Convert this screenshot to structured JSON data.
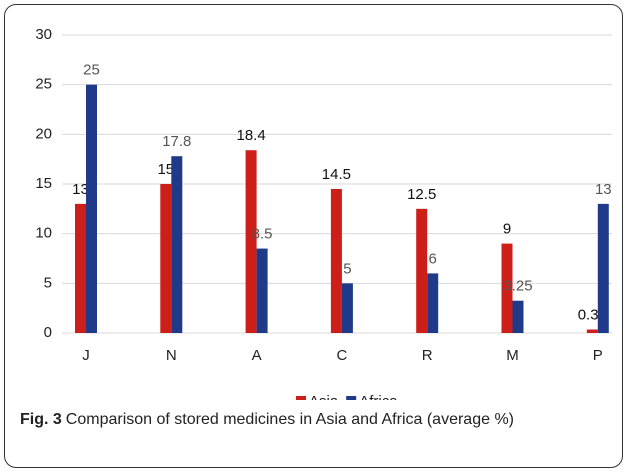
{
  "chart_data": {
    "type": "bar",
    "categories": [
      "J",
      "N",
      "A",
      "C",
      "R",
      "M",
      "P"
    ],
    "series": [
      {
        "name": "Asia",
        "color": "#cc1f1a",
        "values": [
          13,
          15,
          18.4,
          14.5,
          12.5,
          9,
          0.35
        ]
      },
      {
        "name": "Africa",
        "color": "#1f3a88",
        "values": [
          25,
          17.8,
          8.5,
          5,
          6,
          3.25,
          13
        ]
      }
    ],
    "ylim": [
      0,
      30
    ],
    "yticks": [
      0,
      5,
      10,
      15,
      20,
      25,
      30
    ],
    "grid": true,
    "legend": "bottom"
  },
  "caption_label": "Fig. 3",
  "caption": "Comparison of stored medicines in Asia and Africa (average %)"
}
